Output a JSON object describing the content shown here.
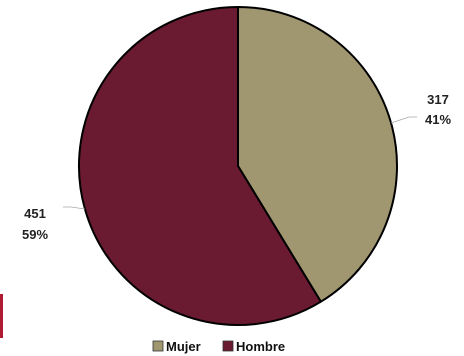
{
  "chart_data": {
    "type": "pie",
    "categories": [
      "Mujer",
      "Hombre"
    ],
    "values": [
      317,
      451
    ],
    "percent_labels": [
      "41%",
      "59%"
    ],
    "value_labels": [
      "317",
      "451"
    ],
    "colors": [
      "#a09670",
      "#6a1b31"
    ],
    "legend": {
      "position": "bottom",
      "entries": [
        "Mujer",
        "Hombre"
      ]
    },
    "start_angle": "12 o'clock, clockwise"
  }
}
